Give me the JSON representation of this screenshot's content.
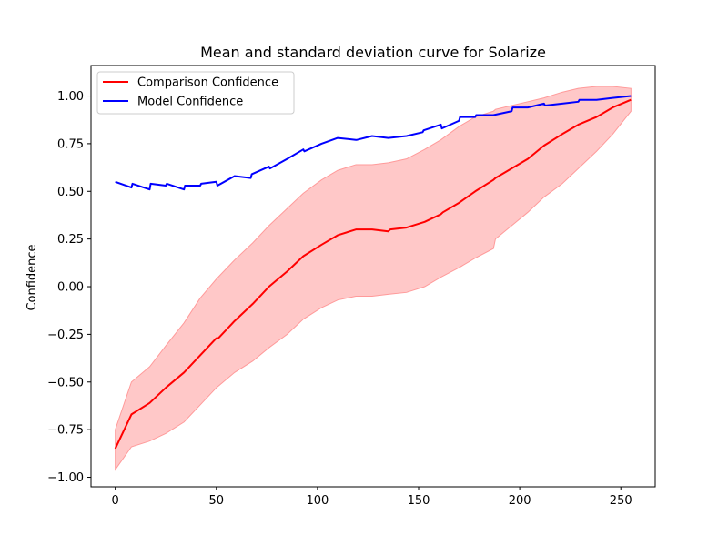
{
  "chart_data": {
    "type": "line",
    "title": "Mean and standard deviation curve for Solarize",
    "xlabel": "",
    "ylabel": "Confidence",
    "xlim": [
      -12,
      267
    ],
    "ylim": [
      -1.05,
      1.16
    ],
    "xticks": [
      0,
      50,
      100,
      150,
      200,
      250
    ],
    "yticks": [
      -1.0,
      -0.75,
      -0.5,
      -0.25,
      0.0,
      0.25,
      0.5,
      0.75,
      1.0
    ],
    "grid": false,
    "legend_position": "top-left",
    "colors": {
      "comparison": "#ff0000",
      "model": "#0000ff",
      "band": "#ffc8c8",
      "band_edge": "#ff9a9a"
    },
    "series": [
      {
        "name": "Comparison Confidence",
        "type": "line",
        "x": [
          0,
          8,
          17,
          25,
          34,
          42,
          50,
          51,
          59,
          68,
          76,
          85,
          93,
          102,
          110,
          119,
          127,
          135,
          136,
          144,
          153,
          161,
          162,
          170,
          178,
          187,
          188,
          196,
          204,
          212,
          221,
          229,
          238,
          246,
          255
        ],
        "y": [
          -0.85,
          -0.67,
          -0.61,
          -0.53,
          -0.45,
          -0.36,
          -0.27,
          -0.27,
          -0.18,
          -0.09,
          0.0,
          0.08,
          0.16,
          0.22,
          0.27,
          0.3,
          0.3,
          0.29,
          0.3,
          0.31,
          0.34,
          0.38,
          0.39,
          0.44,
          0.5,
          0.56,
          0.57,
          0.62,
          0.67,
          0.74,
          0.8,
          0.85,
          0.89,
          0.94,
          0.98
        ]
      },
      {
        "name": "Model Confidence",
        "type": "line",
        "x": [
          0,
          8,
          8.5,
          17,
          17.5,
          25,
          25.5,
          34,
          34.5,
          42,
          42.5,
          50,
          50.5,
          59,
          67,
          67.5,
          76,
          76.5,
          85,
          93,
          93.5,
          102,
          110,
          119,
          119.5,
          127,
          135,
          144,
          152,
          152.5,
          161,
          161.5,
          170,
          170.5,
          178,
          178.5,
          187,
          196,
          196.5,
          204,
          212,
          212.5,
          221,
          229,
          229.5,
          238,
          246,
          255
        ],
        "y": [
          0.55,
          0.52,
          0.54,
          0.51,
          0.54,
          0.53,
          0.54,
          0.51,
          0.53,
          0.53,
          0.54,
          0.55,
          0.53,
          0.58,
          0.57,
          0.59,
          0.63,
          0.62,
          0.67,
          0.72,
          0.71,
          0.75,
          0.78,
          0.77,
          0.77,
          0.79,
          0.78,
          0.79,
          0.81,
          0.82,
          0.85,
          0.83,
          0.87,
          0.89,
          0.89,
          0.9,
          0.9,
          0.92,
          0.94,
          0.94,
          0.96,
          0.95,
          0.96,
          0.97,
          0.98,
          0.98,
          0.99,
          1.0
        ]
      },
      {
        "name": "",
        "type": "band",
        "x": [
          0,
          8,
          17,
          25,
          34,
          42,
          50,
          59,
          68,
          76,
          85,
          93,
          102,
          110,
          119,
          127,
          135,
          144,
          153,
          161,
          170,
          178,
          187,
          188,
          196,
          204,
          212,
          221,
          229,
          238,
          246,
          255
        ],
        "lower": [
          -0.96,
          -0.84,
          -0.81,
          -0.77,
          -0.71,
          -0.62,
          -0.53,
          -0.45,
          -0.39,
          -0.32,
          -0.25,
          -0.17,
          -0.11,
          -0.07,
          -0.05,
          -0.05,
          -0.04,
          -0.03,
          0.0,
          0.05,
          0.1,
          0.15,
          0.2,
          0.25,
          0.32,
          0.39,
          0.47,
          0.54,
          0.62,
          0.71,
          0.8,
          0.92
        ],
        "upper": [
          -0.75,
          -0.5,
          -0.42,
          -0.31,
          -0.19,
          -0.06,
          0.04,
          0.14,
          0.23,
          0.32,
          0.41,
          0.49,
          0.56,
          0.61,
          0.64,
          0.64,
          0.65,
          0.67,
          0.72,
          0.77,
          0.84,
          0.89,
          0.92,
          0.93,
          0.95,
          0.97,
          0.99,
          1.02,
          1.04,
          1.05,
          1.05,
          1.04
        ]
      }
    ]
  }
}
